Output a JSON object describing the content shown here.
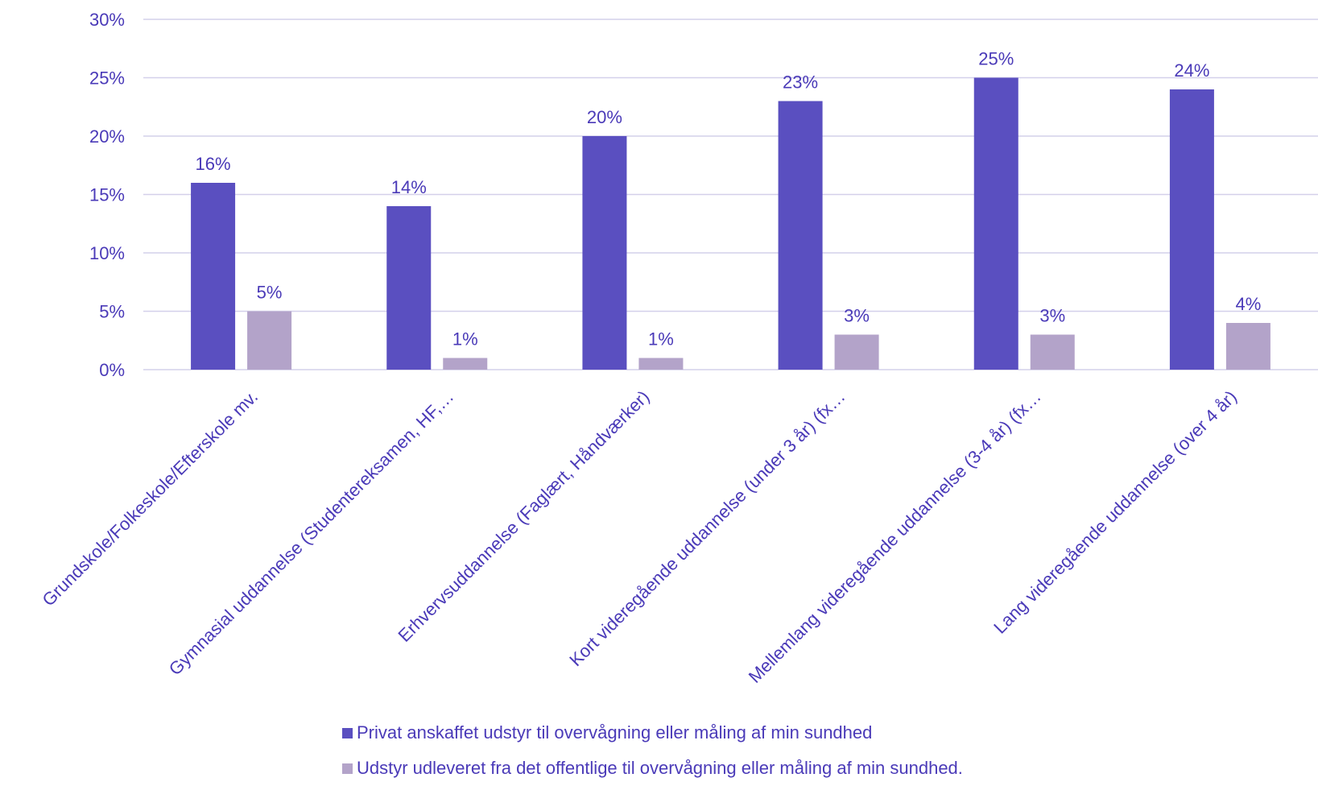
{
  "chart_data": {
    "type": "bar",
    "title": "",
    "xlabel": "",
    "ylabel": "",
    "ylim": [
      0,
      30
    ],
    "y_ticks": [
      "0%",
      "5%",
      "10%",
      "15%",
      "20%",
      "25%",
      "30%"
    ],
    "y_tick_values": [
      0,
      5,
      10,
      15,
      20,
      25,
      30
    ],
    "grid": true,
    "legend_position": "bottom",
    "categories": [
      "Grundskole/Folkeskole/Efterskole mv.",
      "Gymnasial uddannelse (Studentereksamen, HF,…",
      "Erhvervsuddannelse (Faglært, Håndværker)",
      "Kort videregående uddannelse (under 3 år) (fx…",
      "Mellemlang videregående uddannelse (3-4 år) (fx…",
      "Lang videregående uddannelse (over 4 år)"
    ],
    "series": [
      {
        "name": "Privat anskaffet udstyr til overvågning eller måling af min sundhed",
        "color": "#5a4fc0",
        "values": [
          16,
          14,
          20,
          23,
          25,
          24
        ],
        "labels": [
          "16%",
          "14%",
          "20%",
          "23%",
          "25%",
          "24%"
        ]
      },
      {
        "name": "Udstyr udleveret fra det offentlige til overvågning eller måling af min sundhed.",
        "color": "#b3a3c9",
        "values": [
          5,
          1,
          1,
          3,
          3,
          4
        ],
        "labels": [
          "5%",
          "1%",
          "1%",
          "3%",
          "3%",
          "4%"
        ]
      }
    ],
    "colors": {
      "text": "#4a3ab8",
      "grid": "#d4d0ea"
    }
  }
}
